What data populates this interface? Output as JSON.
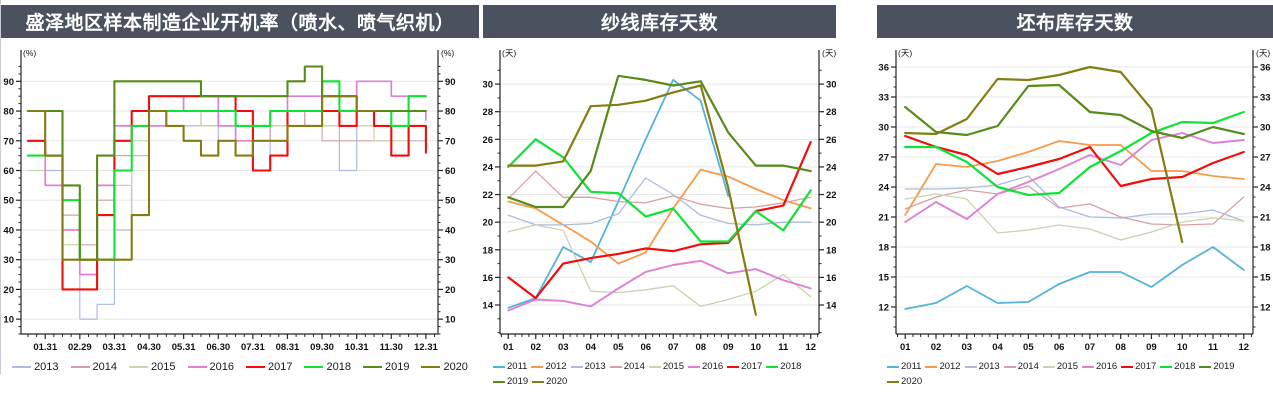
{
  "page": {
    "background": "#ffffff",
    "header_bg": "#4a5260",
    "header_text_color": "#ffffff",
    "axis_color": "#262626",
    "grid_color": "#e8e8e8",
    "tick_label_color": "#111111"
  },
  "chart_data": [
    {
      "type": "line",
      "title": "盛泽地区样本制造企业开机率（喷水、喷气织机）",
      "unit_label": "(%)",
      "legend_position": "bottom",
      "grid": "horizontal",
      "step": true,
      "xlim": [
        0.3,
        12.35
      ],
      "ylim": [
        5,
        96.5
      ],
      "yticks": [
        10,
        20,
        30,
        40,
        50,
        60,
        70,
        80,
        90
      ],
      "y_minor_step": 2.5,
      "xticks": [
        1,
        2,
        3,
        4,
        5,
        6,
        7,
        8,
        9,
        10,
        11,
        12
      ],
      "xtick_labels": [
        "01.31",
        "02.29",
        "03.31",
        "04.30",
        "05.31",
        "06.30",
        "07.31",
        "08.31",
        "09.30",
        "10.31",
        "11.30",
        "12.31"
      ],
      "x_minor_step": 0.25,
      "x": [
        0.5,
        1,
        1.5,
        2,
        2.5,
        3,
        3.5,
        4,
        4.5,
        5,
        5.5,
        6,
        6.5,
        7,
        7.5,
        8,
        8.5,
        9,
        9.5,
        10,
        10.5,
        11,
        11.5,
        12
      ],
      "series": [
        {
          "name": "2013",
          "color": "#aebbdf",
          "width": 1.2,
          "values": [
            65,
            60,
            30,
            10,
            15,
            40,
            65,
            75,
            75,
            75,
            75,
            70,
            70,
            60,
            75,
            80,
            75,
            75,
            60,
            75,
            75,
            80,
            70,
            75
          ]
        },
        {
          "name": "2014",
          "color": "#d8a2a4",
          "width": 1.2,
          "values": [
            70,
            55,
            45,
            35,
            50,
            65,
            75,
            80,
            80,
            80,
            75,
            75,
            70,
            70,
            75,
            80,
            75,
            70,
            70,
            70,
            70,
            75,
            75,
            75
          ]
        },
        {
          "name": "2015",
          "color": "#c8d4ae",
          "width": 1.2,
          "values": [
            60,
            55,
            35,
            30,
            45,
            55,
            70,
            80,
            80,
            80,
            75,
            75,
            75,
            75,
            75,
            75,
            75,
            75,
            75,
            75,
            70,
            70,
            75,
            70
          ]
        },
        {
          "name": "2016",
          "color": "#df80d5",
          "width": 1.7,
          "values": [
            70,
            55,
            40,
            25,
            55,
            75,
            75,
            75,
            80,
            85,
            85,
            75,
            70,
            75,
            80,
            85,
            85,
            85,
            85,
            90,
            90,
            85,
            80,
            77
          ]
        },
        {
          "name": "2017",
          "color": "#f20c0c",
          "width": 2.1,
          "values": [
            70,
            65,
            20,
            20,
            45,
            70,
            80,
            85,
            85,
            85,
            85,
            85,
            80,
            60,
            65,
            80,
            80,
            80,
            75,
            80,
            75,
            65,
            75,
            66
          ]
        },
        {
          "name": "2018",
          "color": "#0fe336",
          "width": 2.1,
          "values": [
            65,
            65,
            50,
            30,
            30,
            60,
            75,
            80,
            80,
            80,
            80,
            80,
            75,
            75,
            80,
            80,
            80,
            90,
            80,
            80,
            80,
            75,
            85,
            85
          ]
        },
        {
          "name": "2019",
          "color": "#568c19",
          "width": 2.1,
          "values": [
            80,
            80,
            55,
            30,
            65,
            90,
            90,
            90,
            90,
            90,
            85,
            85,
            85,
            85,
            85,
            90,
            95,
            85,
            85,
            80,
            80,
            80,
            80,
            80
          ]
        },
        {
          "name": "2020",
          "color": "#847d11",
          "width": 2.1,
          "values": [
            80,
            65,
            30,
            30,
            30,
            30,
            45,
            80,
            75,
            70,
            65,
            70,
            65,
            70,
            70,
            75,
            75,
            85,
            85,
            80,
            80,
            null,
            null,
            null
          ]
        }
      ]
    },
    {
      "type": "line",
      "title": "纱线库存天数",
      "unit_label": "(天)",
      "legend_position": "bottom",
      "grid": "horizontal",
      "step": false,
      "xlim": [
        0.7,
        12.3
      ],
      "ylim": [
        11.9,
        31.6
      ],
      "yticks": [
        14,
        16,
        18,
        20,
        22,
        24,
        26,
        28,
        30
      ],
      "y_minor_step": 1,
      "xticks": [
        1,
        2,
        3,
        4,
        5,
        6,
        7,
        8,
        9,
        10,
        11,
        12
      ],
      "xtick_labels": [
        "01",
        "02",
        "03",
        "04",
        "05",
        "06",
        "07",
        "08",
        "09",
        "10",
        "11",
        "12"
      ],
      "x_minor_step": 0.25,
      "x": [
        1,
        2,
        3,
        4,
        5,
        6,
        7,
        8,
        9,
        10,
        11,
        12
      ],
      "series": [
        {
          "name": "2011",
          "color": "#54b3dc",
          "width": 1.8,
          "values": [
            13.8,
            14.5,
            18.2,
            17.1,
            21.5,
            26.0,
            30.3,
            28.8,
            21.9,
            null,
            null,
            null
          ]
        },
        {
          "name": "2012",
          "color": "#f89a4a",
          "width": 1.8,
          "values": [
            21.5,
            21.0,
            19.8,
            18.6,
            17.0,
            17.8,
            21.0,
            23.8,
            23.3,
            22.4,
            21.6,
            21.0
          ]
        },
        {
          "name": "2013",
          "color": "#aebbdf",
          "width": 1.3,
          "values": [
            20.5,
            19.8,
            19.8,
            19.9,
            20.6,
            23.2,
            22.0,
            20.5,
            19.9,
            19.8,
            20.0,
            20.0
          ]
        },
        {
          "name": "2014",
          "color": "#d8a2a4",
          "width": 1.3,
          "values": [
            21.7,
            23.7,
            21.8,
            21.8,
            21.5,
            21.4,
            21.9,
            21.3,
            21.0,
            21.1,
            21.4,
            21.8
          ]
        },
        {
          "name": "2015",
          "color": "#c8d4ae",
          "width": 1.3,
          "values": [
            19.3,
            19.8,
            19.4,
            15.0,
            14.9,
            15.1,
            15.4,
            13.9,
            14.4,
            15.0,
            16.2,
            14.6
          ]
        },
        {
          "name": "2016",
          "color": "#df80d5",
          "width": 1.9,
          "values": [
            13.6,
            14.4,
            14.3,
            13.9,
            15.2,
            16.4,
            16.9,
            17.2,
            16.3,
            16.6,
            15.8,
            15.2
          ]
        },
        {
          "name": "2017",
          "color": "#f20c0c",
          "width": 2.2,
          "values": [
            16.0,
            14.5,
            17.0,
            17.4,
            17.7,
            18.1,
            17.9,
            18.4,
            18.5,
            20.8,
            21.2,
            25.8
          ]
        },
        {
          "name": "2018",
          "color": "#0fe336",
          "width": 2.2,
          "values": [
            24.0,
            26.0,
            24.7,
            22.2,
            22.1,
            20.4,
            21.0,
            18.6,
            18.6,
            20.8,
            19.4,
            22.3
          ]
        },
        {
          "name": "2019",
          "color": "#568c19",
          "width": 2.2,
          "values": [
            21.8,
            21.1,
            21.1,
            23.7,
            30.6,
            30.3,
            29.9,
            30.2,
            26.5,
            24.1,
            24.1,
            23.7
          ]
        },
        {
          "name": "2020",
          "color": "#847d11",
          "width": 2.2,
          "values": [
            24.1,
            24.1,
            24.4,
            28.4,
            28.5,
            28.8,
            29.4,
            29.9,
            22.5,
            13.3,
            null,
            null
          ]
        }
      ]
    },
    {
      "type": "line",
      "title": "坯布库存天数",
      "unit_label": "(天)",
      "legend_position": "bottom",
      "grid": "horizontal",
      "step": false,
      "xlim": [
        0.7,
        12.3
      ],
      "ylim": [
        9.3,
        36.5
      ],
      "yticks": [
        12,
        15,
        18,
        21,
        24,
        27,
        30,
        33,
        36
      ],
      "y_minor_step": 1,
      "xticks": [
        1,
        2,
        3,
        4,
        5,
        6,
        7,
        8,
        9,
        10,
        11,
        12
      ],
      "xtick_labels": [
        "01",
        "02",
        "03",
        "04",
        "05",
        "06",
        "07",
        "08",
        "09",
        "10",
        "11",
        "12"
      ],
      "x_minor_step": 0.25,
      "x": [
        1,
        2,
        3,
        4,
        5,
        6,
        7,
        8,
        9,
        10,
        11,
        12
      ],
      "series": [
        {
          "name": "2011",
          "color": "#54b3dc",
          "width": 1.8,
          "values": [
            11.8,
            12.4,
            14.1,
            12.4,
            12.5,
            14.3,
            15.5,
            15.5,
            14.0,
            16.2,
            18.0,
            15.7
          ]
        },
        {
          "name": "2012",
          "color": "#f89a4a",
          "width": 1.8,
          "values": [
            21.2,
            26.3,
            26.0,
            26.6,
            27.5,
            28.6,
            28.2,
            28.2,
            25.6,
            25.6,
            25.1,
            24.8
          ]
        },
        {
          "name": "2013",
          "color": "#aebbdf",
          "width": 1.3,
          "values": [
            23.8,
            23.8,
            23.9,
            24.2,
            25.1,
            22.0,
            21.0,
            20.9,
            21.3,
            21.3,
            21.7,
            20.6
          ]
        },
        {
          "name": "2014",
          "color": "#d8a2a4",
          "width": 1.3,
          "values": [
            21.8,
            23.0,
            23.7,
            23.3,
            24.1,
            21.9,
            22.3,
            21.0,
            20.3,
            20.2,
            20.3,
            23.0
          ]
        },
        {
          "name": "2015",
          "color": "#c8d4ae",
          "width": 1.3,
          "values": [
            22.8,
            23.3,
            22.8,
            19.4,
            19.7,
            20.2,
            19.8,
            18.7,
            19.5,
            20.5,
            20.9,
            20.6
          ]
        },
        {
          "name": "2016",
          "color": "#df80d5",
          "width": 1.9,
          "values": [
            20.5,
            22.5,
            20.8,
            23.3,
            24.5,
            25.8,
            27.2,
            26.2,
            28.7,
            29.4,
            28.4,
            28.7
          ]
        },
        {
          "name": "2017",
          "color": "#f20c0c",
          "width": 2.2,
          "values": [
            29.1,
            28.0,
            27.2,
            25.3,
            26.0,
            26.8,
            28.0,
            24.1,
            24.8,
            25.0,
            26.4,
            27.5
          ]
        },
        {
          "name": "2018",
          "color": "#0fe336",
          "width": 2.2,
          "values": [
            28.0,
            28.0,
            26.5,
            24.0,
            23.2,
            23.4,
            26.0,
            27.6,
            29.4,
            30.5,
            30.4,
            31.5
          ]
        },
        {
          "name": "2019",
          "color": "#568c19",
          "width": 2.2,
          "values": [
            32.0,
            29.5,
            29.2,
            30.1,
            34.1,
            34.2,
            31.5,
            31.2,
            29.6,
            28.9,
            30.0,
            29.3
          ]
        },
        {
          "name": "2020",
          "color": "#847d11",
          "width": 2.2,
          "values": [
            29.4,
            29.3,
            30.8,
            34.8,
            34.7,
            35.2,
            36.0,
            35.5,
            31.8,
            18.5,
            null,
            null
          ]
        }
      ]
    }
  ]
}
